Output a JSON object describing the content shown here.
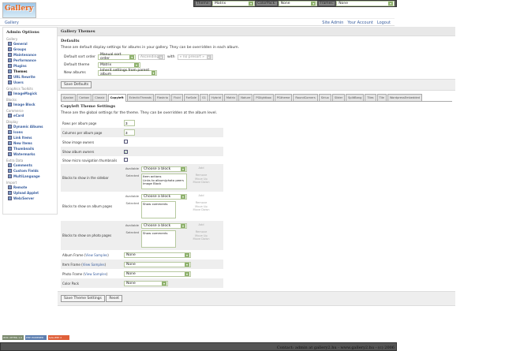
{
  "header": {
    "logo_text": "Gallery",
    "top_selectors": [
      {
        "label": "Theme:",
        "value": "Matrix"
      },
      {
        "label": "ColorPack:",
        "value": "None"
      },
      {
        "label": "Frames:",
        "value": "None"
      }
    ],
    "breadcrumb": "Gallery",
    "system_links": [
      "Site Admin",
      "Your Account",
      "Logout"
    ]
  },
  "sidebar": {
    "title": "Admin Options",
    "groups": [
      {
        "name": "Gallery",
        "items": [
          "General",
          "Groups",
          "Maintenance",
          "Performance",
          "Plugins",
          "Themes",
          "URL Rewrite",
          "Users"
        ]
      },
      {
        "name": "Graphics Toolkits",
        "items": [
          "ImageMagick"
        ]
      },
      {
        "name": "Blocks",
        "items": [
          "Image Block"
        ]
      },
      {
        "name": "Commerce",
        "items": [
          "eCard"
        ]
      },
      {
        "name": "Display",
        "items": [
          "Dynamic Albums",
          "Icons",
          "Link Items",
          "New Items",
          "Thumbnails",
          "Watermarks"
        ]
      },
      {
        "name": "Extra Data",
        "items": [
          "Comments",
          "Custom Fields",
          "MultiLanguage"
        ]
      },
      {
        "name": "Import",
        "items": [
          "Remote",
          "Upload Applet",
          "Web/Server"
        ]
      }
    ],
    "current": "Themes"
  },
  "main": {
    "title": "Gallery Themes",
    "defaults": {
      "heading": "Defaults",
      "description": "These are default display settings for albums in your gallery. They can be overridden in each album.",
      "sort_label": "Default sort order",
      "sort_value": "Manual sort order",
      "sort_dir": "Ascending",
      "with_label": "with",
      "with_value": "« no presort »",
      "theme_label": "Default theme",
      "theme_value": "Matrix",
      "new_albums_label": "New albums",
      "new_albums_value": "Inherit settings from parent album",
      "save_label": "Save Defaults"
    },
    "tabs": [
      "Ajaxian",
      "Carbon",
      "Classic",
      "Copyleft",
      "EclecticThreads",
      "Flashrio",
      "Fluid",
      "ForSale",
      "G1",
      "Hybrid",
      "Matrix",
      "Nature",
      "PGlightbox",
      "PGtheme",
      "RoundCorners",
      "Siriux",
      "Slider",
      "SplitBang",
      "Tiles",
      "Tile",
      "WordpressEmbedded"
    ],
    "active_tab": "Copyleft",
    "theme_settings": {
      "heading": "Copyleft Theme Settings",
      "description": "These are the global settings for the theme. They can be overridden at the album level.",
      "rows_label": "Rows per album page",
      "rows_value": "3",
      "cols_label": "Columns per album page",
      "cols_value": "3",
      "image_owners_label": "Show image owners",
      "image_owners": false,
      "album_owners_label": "Show album owners",
      "album_owners": true,
      "micro_nav_label": "Show micro navigation thumbnails",
      "micro_nav": false,
      "available_label": "Available",
      "selected_label": "Selected",
      "choose_block": "Choose a block",
      "add": "Add",
      "remove": "Remove",
      "move_up": "Move Up",
      "move_down": "Move Down",
      "sidebar_blocks_label": "Blocks to show in the sidebar",
      "sidebar_blocks": [
        "Item actions",
        "Links to album/photo peers",
        "Image Block"
      ],
      "album_blocks_label": "Blocks to show on album pages",
      "album_blocks": [
        "Show comments"
      ],
      "photo_blocks_label": "Blocks to show on photo pages",
      "photo_blocks": [
        "Show comments"
      ],
      "album_frame_label": "Album Frame",
      "item_frame_label": "Item Frame",
      "photo_frame_label": "Photo Frame",
      "view_samples": "View Samples",
      "album_frame": "None",
      "item_frame": "None",
      "photo_frame": "None",
      "color_pack_label": "Color Pack",
      "color_pack": "None",
      "save_label": "Save Theme Settings",
      "reset_label": "Reset"
    }
  },
  "footer": {
    "badges": [
      "W3C XHTML 1.0",
      "PHP POWERED",
      "GALLERY 2"
    ],
    "text": "Contact: admin at gallery2.hu - www.gallery2.hu - (c) 2006"
  },
  "colors": {
    "link": "#3a5f9f",
    "select_arrow": "#8fb26e",
    "footer_bg": "#555555"
  }
}
